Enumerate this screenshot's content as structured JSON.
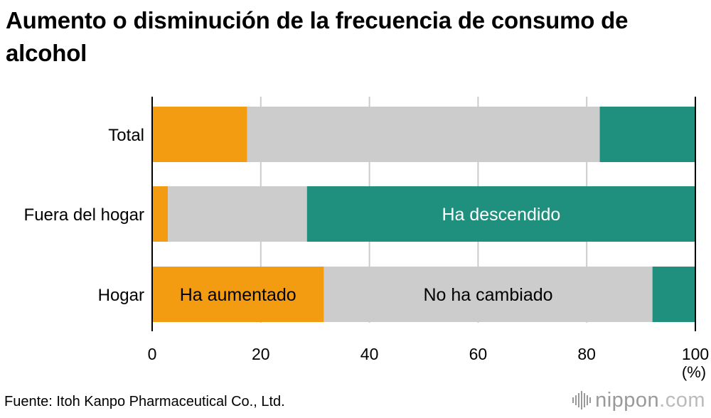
{
  "title": "Aumento o disminución de la frecuencia de consumo de alcohol",
  "source": "Fuente: Itoh Kanpo Pharmaceutical Co., Ltd.",
  "logo": {
    "name": "nippon",
    "suffix": ".com"
  },
  "colors": {
    "aumentado": "#f39c12",
    "no_cambiado": "#cccccc",
    "descendido": "#1f8f7e",
    "grid": "#cccccc"
  },
  "chart_data": {
    "type": "bar",
    "orientation": "horizontal",
    "stacked": true,
    "categories": [
      "Total",
      "Fuera del hogar",
      "Hogar"
    ],
    "series": [
      {
        "name": "Ha aumentado",
        "values": [
          17.5,
          2.9,
          31.6
        ]
      },
      {
        "name": "No ha cambiado",
        "values": [
          64.9,
          25.6,
          60.5
        ]
      },
      {
        "name": "Ha descendido",
        "values": [
          17.6,
          71.5,
          7.9
        ]
      }
    ],
    "xlim": [
      0,
      100
    ],
    "xticks": [
      "0",
      "20",
      "40",
      "60",
      "80",
      "100"
    ],
    "xlabel": "(%)",
    "grid": true,
    "legend": "inline labels"
  }
}
